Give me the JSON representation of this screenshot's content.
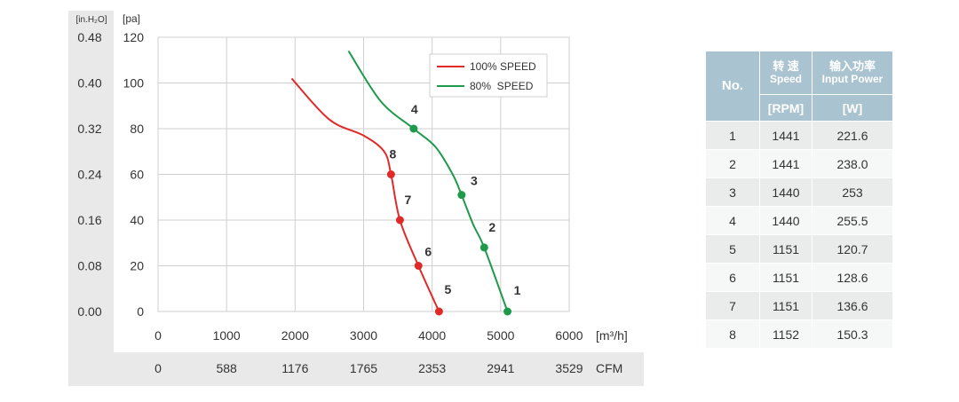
{
  "chart_data": {
    "type": "line",
    "x_unit_label": "[m³/h]",
    "x_ticks": [
      "0",
      "1000",
      "2000",
      "3000",
      "4000",
      "5000",
      "6000"
    ],
    "x_ticks_cfm": [
      "0",
      "588",
      "1176",
      "1765",
      "2353",
      "2941",
      "3529"
    ],
    "cfm_label": "CFM",
    "y_unit_left": "[in.H₂O]",
    "y_unit_right": "[pa]",
    "y_ticks_inh2o": [
      "0.48",
      "0.40",
      "0.32",
      "0.24",
      "0.16",
      "0.08",
      "0.00"
    ],
    "y_ticks_pa": [
      "120",
      "100",
      "80",
      "60",
      "40",
      "20",
      "0"
    ],
    "xlim": [
      0,
      6000
    ],
    "ylim": [
      0,
      120
    ],
    "grid": true,
    "legend_position": "top-right",
    "series": [
      {
        "name": "100% SPEED",
        "color": "#e02a2a",
        "curve": [
          [
            1950,
            102
          ],
          [
            2500,
            84
          ],
          [
            3000,
            77
          ],
          [
            3300,
            70
          ],
          [
            3400,
            60
          ],
          [
            3530,
            40
          ],
          [
            3800,
            20
          ],
          [
            4100,
            0
          ]
        ],
        "points": [
          {
            "label": "8",
            "x": 3400,
            "y": 60
          },
          {
            "label": "7",
            "x": 3530,
            "y": 40
          },
          {
            "label": "6",
            "x": 3800,
            "y": 20
          },
          {
            "label": "5",
            "x": 4100,
            "y": 0
          }
        ]
      },
      {
        "name": "80%  SPEED",
        "color": "#1e9a4a",
        "curve": [
          [
            2780,
            114
          ],
          [
            3250,
            92
          ],
          [
            3730,
            80
          ],
          [
            4050,
            72
          ],
          [
            4300,
            60
          ],
          [
            4430,
            51
          ],
          [
            4600,
            38
          ],
          [
            4760,
            28
          ],
          [
            5100,
            0
          ]
        ],
        "points": [
          {
            "label": "4",
            "x": 3730,
            "y": 80
          },
          {
            "label": "3",
            "x": 4430,
            "y": 51
          },
          {
            "label": "2",
            "x": 4760,
            "y": 28
          },
          {
            "label": "1",
            "x": 5100,
            "y": 0
          }
        ]
      }
    ]
  },
  "table": {
    "headers": {
      "no": "No.",
      "speed_cn": "转 速",
      "speed_en": "Speed",
      "power_cn": "输入功率",
      "power_en": "Input Power",
      "speed_unit": "[RPM]",
      "power_unit": "[W]"
    },
    "rows": [
      {
        "no": "1",
        "rpm": "1441",
        "w": "221.6"
      },
      {
        "no": "2",
        "rpm": "1441",
        "w": "238.0"
      },
      {
        "no": "3",
        "rpm": "1440",
        "w": "253"
      },
      {
        "no": "4",
        "rpm": "1440",
        "w": "255.5"
      },
      {
        "no": "5",
        "rpm": "1151",
        "w": "120.7"
      },
      {
        "no": "6",
        "rpm": "1151",
        "w": "128.6"
      },
      {
        "no": "7",
        "rpm": "1151",
        "w": "136.6"
      },
      {
        "no": "8",
        "rpm": "1152",
        "w": "150.3"
      }
    ]
  }
}
